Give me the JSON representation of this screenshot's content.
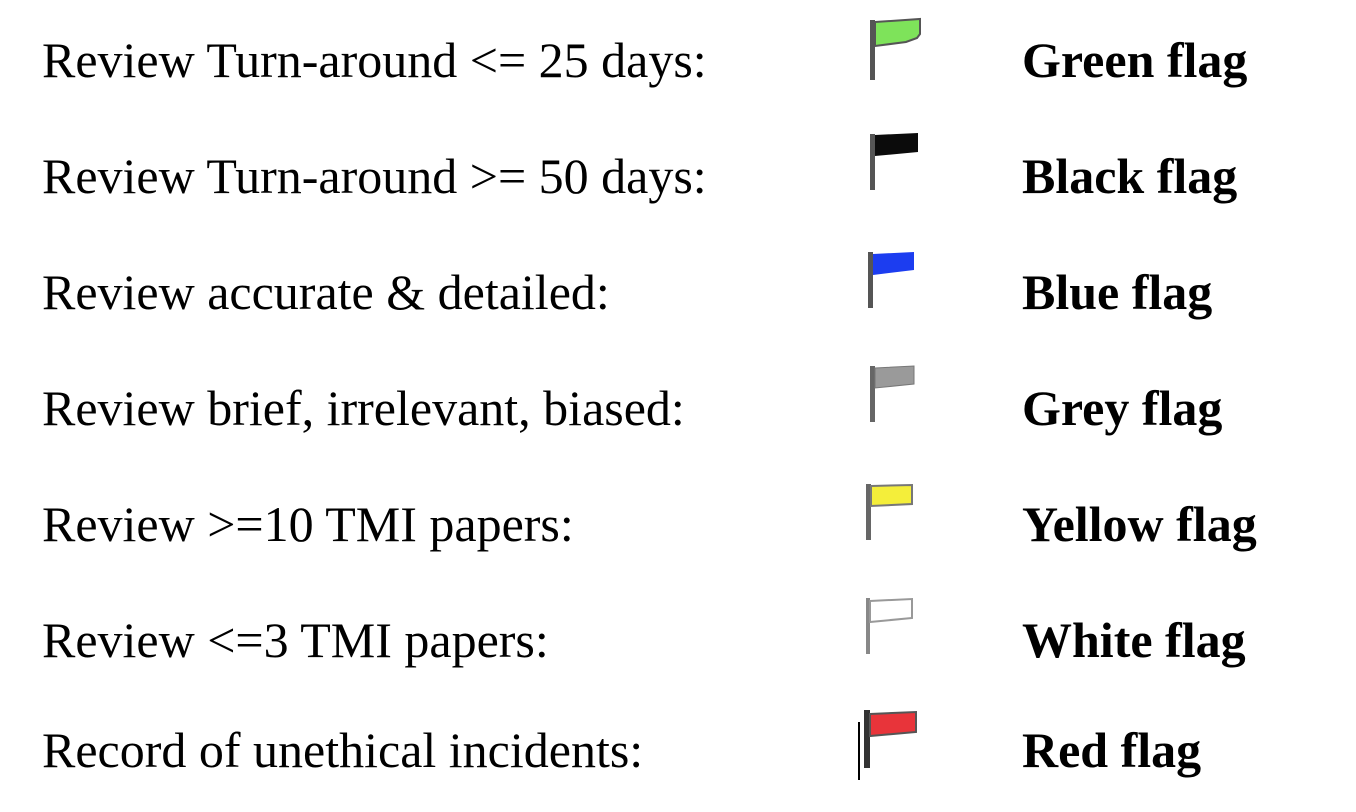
{
  "legend": {
    "rows": [
      {
        "criterion": "Review Turn-around <= 25 days:",
        "flag_label": "Green flag",
        "flag_color": "#7ee35a",
        "icon": "green-flag-icon"
      },
      {
        "criterion": "Review Turn-around >= 50 days:",
        "flag_label": "Black flag",
        "flag_color": "#0b0b0b",
        "icon": "black-flag-icon"
      },
      {
        "criterion": "Review accurate & detailed:",
        "flag_label": "Blue flag",
        "flag_color": "#1c3df0",
        "icon": "blue-flag-icon"
      },
      {
        "criterion": "Review brief, irrelevant, biased:",
        "flag_label": "Grey flag",
        "flag_color": "#9a9a9a",
        "icon": "grey-flag-icon"
      },
      {
        "criterion": "Review >=10 TMI papers:",
        "flag_label": "Yellow flag",
        "flag_color": "#f4ee3a",
        "icon": "yellow-flag-icon"
      },
      {
        "criterion": "Review <=3 TMI papers:",
        "flag_label": "White flag",
        "flag_color": "#ffffff",
        "icon": "white-flag-icon"
      },
      {
        "criterion": "Record of unethical incidents:",
        "flag_label": "Red flag",
        "flag_color": "#e8343a",
        "icon": "red-flag-icon"
      }
    ]
  }
}
